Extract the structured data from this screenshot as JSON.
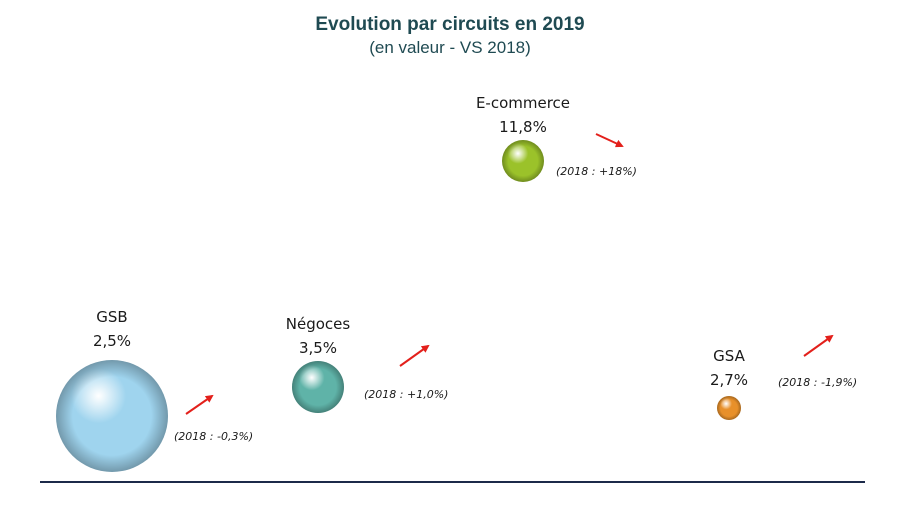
{
  "title": "Evolution par circuits en 2019",
  "subtitle": "(en valeur - VS 2018)",
  "colors": {
    "gsb": "#9fd4ee",
    "negoces": "#5fb3a8",
    "ecommerce": "#9bc22a",
    "gsa": "#e8902a",
    "arrow": "#e3201b",
    "baseline": "#1c2a4a"
  },
  "chart_data": {
    "type": "bubble",
    "title": "Evolution par circuits en 2019",
    "subtitle": "(en valeur - VS 2018)",
    "series": [
      {
        "name": "GSB",
        "value_label": "2,5%",
        "growth": 2.5,
        "note": "(2018 : -0,3%)",
        "prev_growth": -0.3,
        "color": "#9fd4ee"
      },
      {
        "name": "Négoces",
        "value_label": "3,5%",
        "growth": 3.5,
        "note": "(2018 : +1,0%)",
        "prev_growth": 1.0,
        "color": "#5fb3a8"
      },
      {
        "name": "E-commerce",
        "value_label": "11,8%",
        "growth": 11.8,
        "note": "(2018 : +18%)",
        "prev_growth": 18,
        "color": "#9bc22a"
      },
      {
        "name": "GSA",
        "value_label": "2,7%",
        "growth": 2.7,
        "note": "(2018 : -1,9%)",
        "prev_growth": -1.9,
        "color": "#e8902a"
      }
    ]
  }
}
